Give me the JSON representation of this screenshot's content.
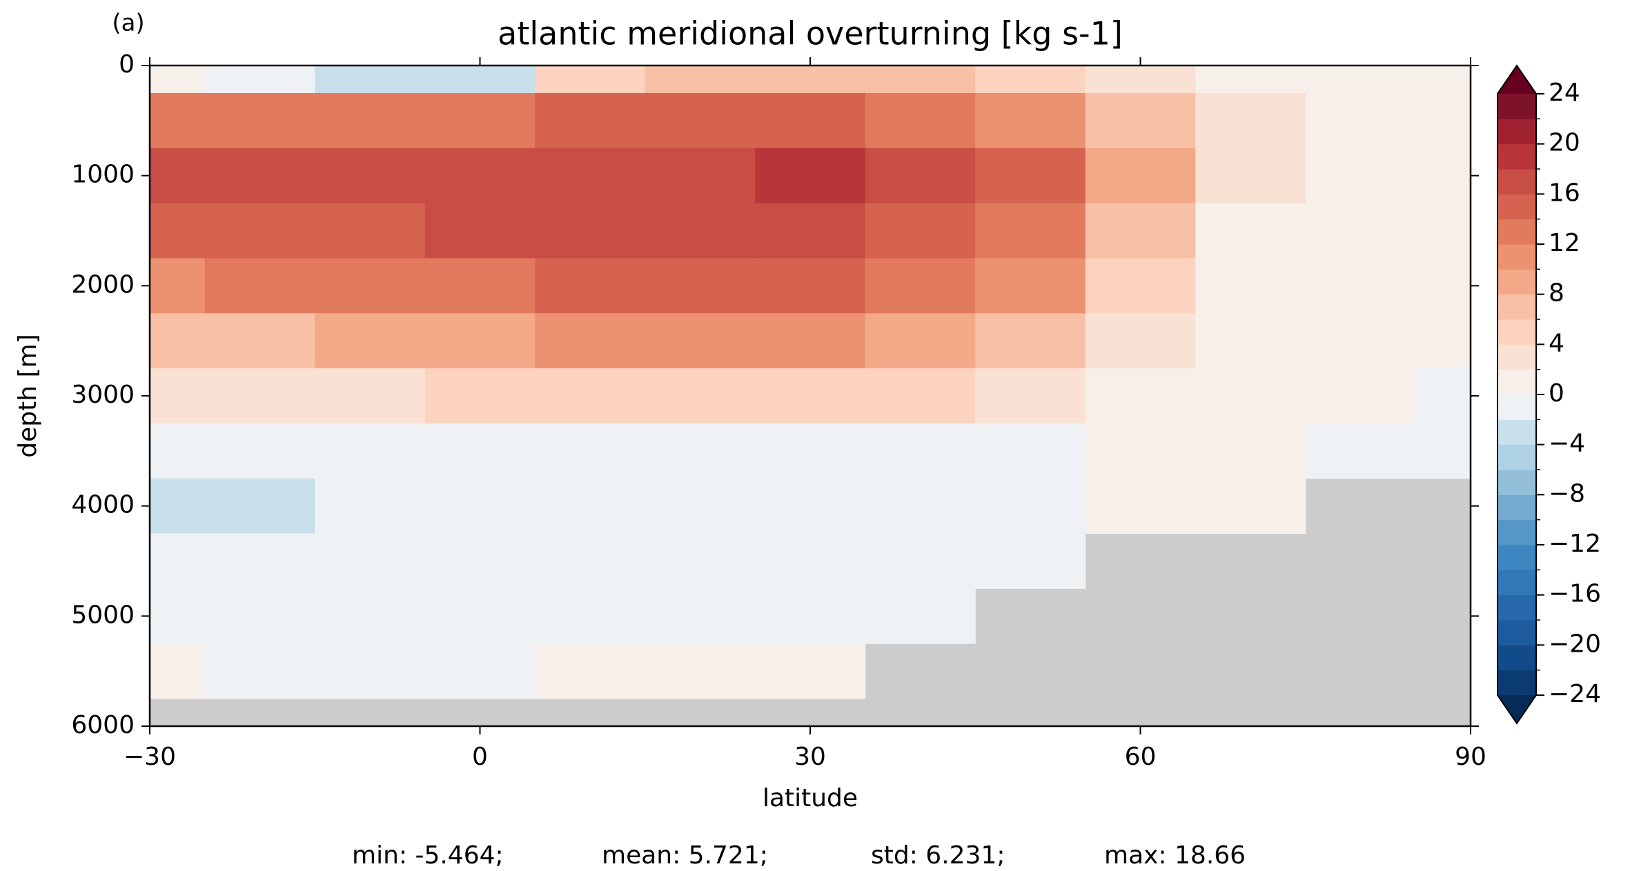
{
  "chart_data": {
    "type": "contourf",
    "panel_label": "(a)",
    "title": "atlantic meridional overturning [kg s-1]",
    "xlabel": "latitude",
    "ylabel": "depth [m]",
    "xlim": [
      -30,
      90
    ],
    "xticks": [
      {
        "value": -30,
        "label": "−30"
      },
      0,
      30,
      60,
      90
    ],
    "ylim": [
      6000,
      0
    ],
    "yticks": [
      0,
      1000,
      2000,
      3000,
      4000,
      5000,
      6000
    ],
    "mask_color": "#cccccc",
    "lats": [
      -30,
      -20,
      -10,
      0,
      10,
      20,
      30,
      40,
      50,
      60,
      70,
      80,
      90
    ],
    "depths": [
      0,
      500,
      1000,
      1500,
      2000,
      2500,
      3000,
      3500,
      4000,
      4500,
      5000,
      5500
    ],
    "z": [
      [
        0,
        -2,
        -4,
        -3,
        4,
        6,
        6,
        6,
        4,
        2,
        1,
        0,
        0
      ],
      [
        12,
        12,
        12,
        13,
        14,
        14,
        14,
        13,
        10,
        6,
        2,
        1,
        0
      ],
      [
        16,
        16,
        16,
        16,
        16,
        16,
        18,
        17,
        14,
        9,
        2,
        1,
        0
      ],
      [
        15,
        15,
        15,
        16,
        16,
        16,
        16,
        15,
        12,
        6,
        1,
        0,
        0
      ],
      [
        11,
        12,
        12,
        13,
        14,
        14,
        14,
        13,
        10,
        4,
        1,
        0,
        0
      ],
      [
        6,
        7,
        8,
        9,
        10,
        10,
        10,
        9,
        7,
        3,
        1,
        0,
        0
      ],
      [
        2,
        3,
        3,
        4,
        4,
        5,
        5,
        4,
        3,
        1,
        0,
        0,
        -0.5
      ],
      [
        -1,
        -1,
        -1,
        -0.5,
        -0.5,
        -0.5,
        -0.5,
        -0.5,
        -0.5,
        0.5,
        0.5,
        -0.5,
        -0.5
      ],
      [
        -3,
        -3,
        -2,
        -1,
        -1,
        -1,
        -1,
        -1,
        -1,
        0.5,
        0.5,
        null,
        null
      ],
      [
        -1,
        -1,
        -1,
        -1,
        -1,
        -1,
        -1,
        -1,
        -0.5,
        null,
        null,
        null,
        null
      ],
      [
        -0.5,
        -0.5,
        -0.5,
        -0.5,
        -0.5,
        -0.5,
        -0.5,
        -0.5,
        null,
        null,
        null,
        null,
        null
      ],
      [
        0.5,
        -0.5,
        -0.5,
        -0.5,
        0.5,
        0.5,
        0.5,
        null,
        null,
        null,
        null,
        null,
        null
      ]
    ],
    "colorbar": {
      "levels": [
        -24,
        -22,
        -20,
        -18,
        -16,
        -14,
        -12,
        -10,
        -8,
        -6,
        -4,
        -2,
        0,
        2,
        4,
        6,
        8,
        10,
        12,
        14,
        16,
        18,
        20,
        22,
        24
      ],
      "colors": [
        "#0a3b72",
        "#124b8a",
        "#1c5b9d",
        "#2767ab",
        "#3277b6",
        "#3d87c0",
        "#5597c8",
        "#74a9d0",
        "#93bfdb",
        "#afd1e4",
        "#c8dfec",
        "#eef2f5",
        "#f6efea",
        "#f9e1d4",
        "#fbd3bf",
        "#f8c0a4",
        "#f3a888",
        "#ec9270",
        "#e27a5e",
        "#d5634f",
        "#c84d44",
        "#b8353a",
        "#a02231",
        "#7d1228"
      ],
      "under_color": "#062b56",
      "over_color": "#67001f",
      "ticks": [
        {
          "value": -24,
          "label": "−24"
        },
        {
          "value": -20,
          "label": "−20"
        },
        {
          "value": -16,
          "label": "−16"
        },
        {
          "value": -12,
          "label": "−12"
        },
        {
          "value": -8,
          "label": "−8"
        },
        {
          "value": -4,
          "label": "−4"
        },
        0,
        4,
        8,
        12,
        16,
        20,
        24
      ]
    },
    "stats": [
      "min: -5.464;",
      "mean: 5.721;",
      "std: 6.231;",
      "max: 18.66"
    ]
  }
}
